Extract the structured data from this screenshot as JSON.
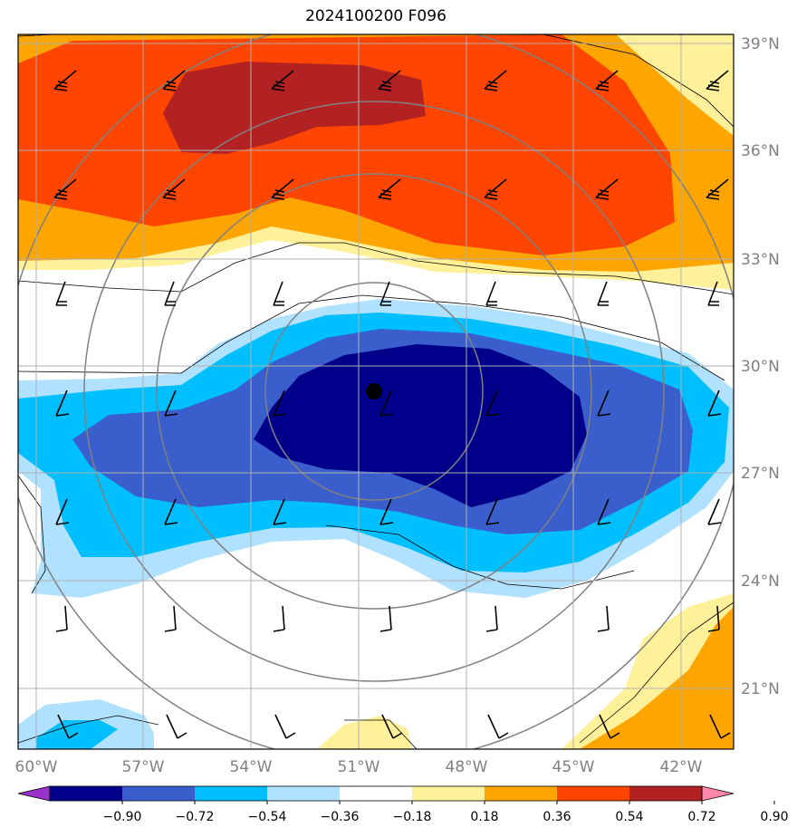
{
  "title": "2024100200 F096",
  "map": {
    "lon_labels": [
      "60°W",
      "57°W",
      "54°W",
      "51°W",
      "48°W",
      "45°W",
      "42°W"
    ],
    "lat_labels": [
      "39°N",
      "36°N",
      "33°N",
      "30°N",
      "27°N",
      "24°N",
      "21°N"
    ],
    "grid": true,
    "center_marker": {
      "lon": -50.5,
      "lat": 29.3
    }
  },
  "colorbar": {
    "levels": [
      "−0.90",
      "−0.72",
      "−0.54",
      "−0.36",
      "−0.18",
      "0.18",
      "0.36",
      "0.54",
      "0.72",
      "0.90"
    ],
    "colors": [
      "#9932cc",
      "#00008b",
      "#3a5fcd",
      "#00bfff",
      "#b0e2ff",
      "#ffffff",
      "#fff09a",
      "#ffa500",
      "#ff4500",
      "#b22222",
      "#ff88aa"
    ],
    "extend": "both"
  },
  "fill_colors": {
    "pos1": "#fff09a",
    "pos2": "#ffa500",
    "pos3": "#ff4500",
    "pos4": "#b22222",
    "neg1": "#b0e2ff",
    "neg2": "#00bfff",
    "neg3": "#3a5fcd",
    "neg4": "#00008b"
  }
}
